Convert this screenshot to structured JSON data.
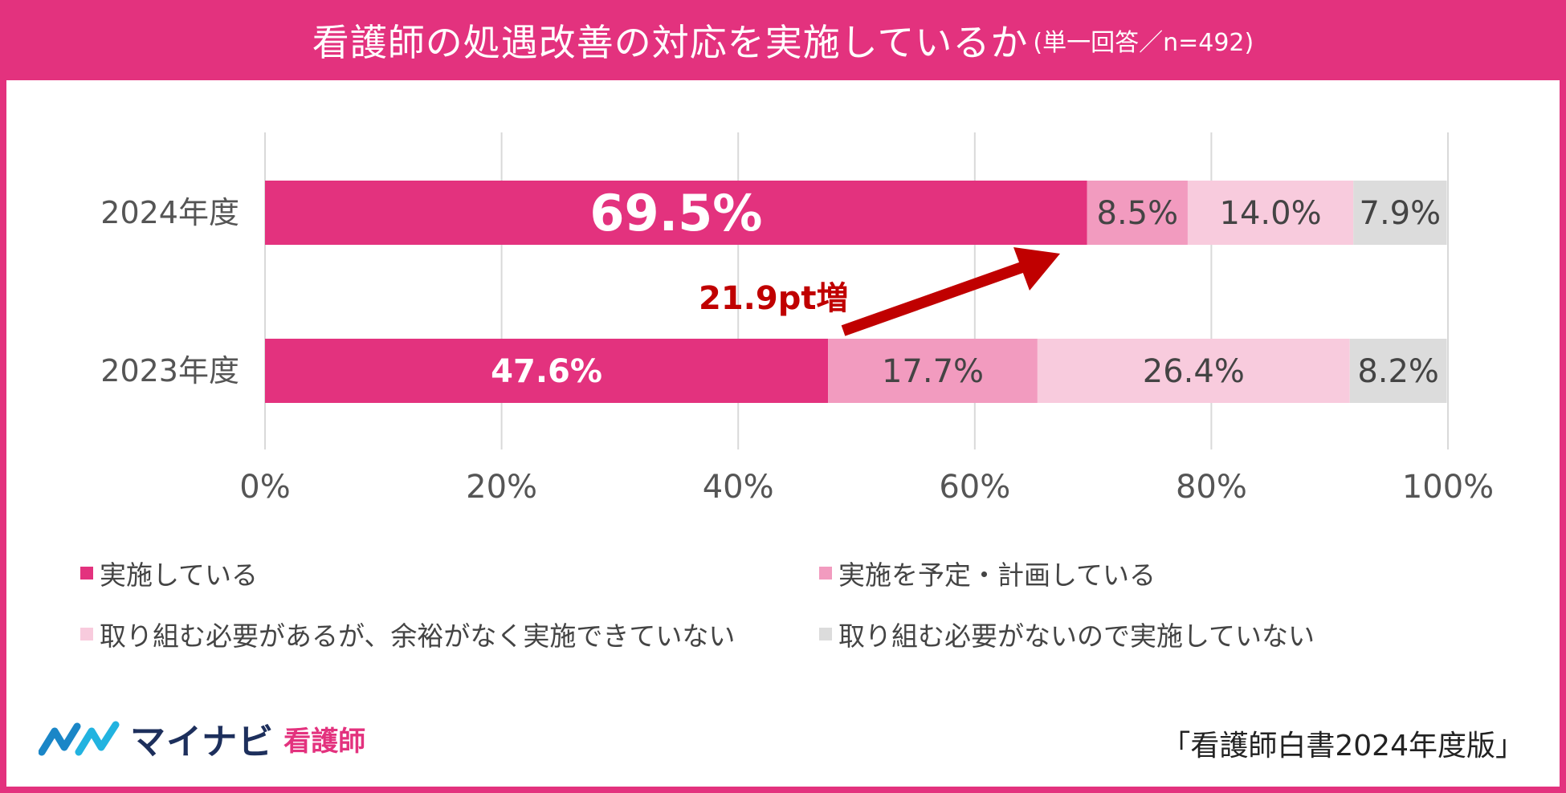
{
  "title": {
    "main": "看護師の処遇改善の対応を実施しているか",
    "sub": "(単一回答／n=492)"
  },
  "chart_data": {
    "type": "bar",
    "orientation": "horizontal",
    "stacked": true,
    "categories": [
      "2024年度",
      "2023年度"
    ],
    "series": [
      {
        "name": "実施している",
        "values": [
          69.5,
          47.6
        ],
        "labels": [
          "69.5%",
          "47.6%"
        ],
        "color": "#e3327e",
        "label_color": "#ffffff"
      },
      {
        "name": "実施を予定・計画している",
        "values": [
          8.5,
          17.7
        ],
        "labels": [
          "8.5%",
          "17.7%"
        ],
        "color": "#f29bbf",
        "label_color": "#444444"
      },
      {
        "name": "取り組む必要があるが、余裕がなく実施できていない",
        "values": [
          14.0,
          26.4
        ],
        "labels": [
          "14.0%",
          "26.4%"
        ],
        "color": "#f8cbdd",
        "label_color": "#444444"
      },
      {
        "name": "取り組む必要がないので実施していない",
        "values": [
          7.9,
          8.2
        ],
        "labels": [
          "7.9%",
          "8.2%"
        ],
        "color": "#dcdcdc",
        "label_color": "#444444"
      }
    ],
    "xlim": [
      0,
      100
    ],
    "xticks": [
      "0%",
      "20%",
      "40%",
      "60%",
      "80%",
      "100%"
    ],
    "grid": true,
    "legend_position": "bottom",
    "annotation": {
      "text": "21.9pt増",
      "color": "#c00000",
      "from": {
        "category": "2023年度",
        "value": 47.6
      },
      "to": {
        "category": "2024年度",
        "value": 69.5
      }
    }
  },
  "logo": {
    "name": "マイナビ",
    "sub": "看護師"
  },
  "source": "「看護師白書2024年度版」",
  "colors": {
    "brand_pink": "#e3327e",
    "annotation_red": "#c00000"
  }
}
